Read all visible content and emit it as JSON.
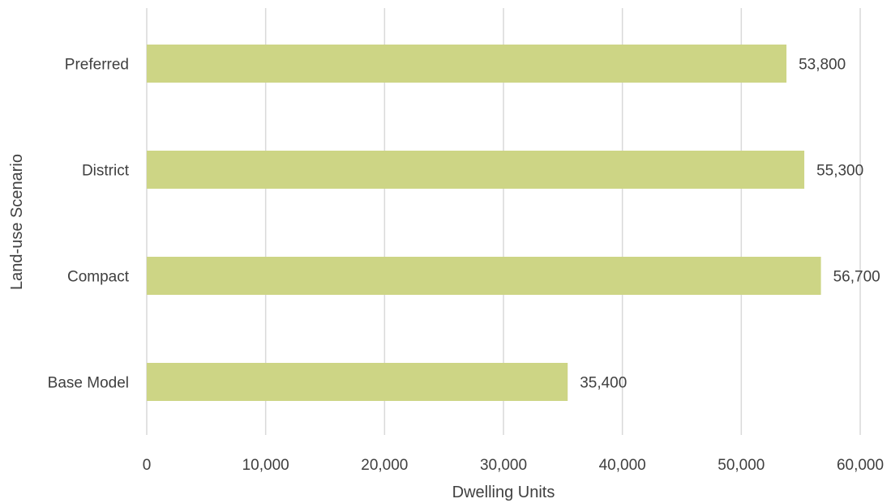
{
  "chart_data": {
    "type": "bar",
    "orientation": "horizontal",
    "categories": [
      "Base Model",
      "Compact",
      "District",
      "Preferred"
    ],
    "values": [
      35400,
      56700,
      55300,
      53800
    ],
    "data_labels": [
      "35,400",
      "56,700",
      "55,300",
      "53,800"
    ],
    "xlabel": "Dwelling Units",
    "ylabel": "Land-use Scenario",
    "xlim": [
      0,
      60000
    ],
    "x_ticks": [
      0,
      10000,
      20000,
      30000,
      40000,
      50000,
      60000
    ],
    "x_tick_labels": [
      "0",
      "10,000",
      "20,000",
      "30,000",
      "40,000",
      "50,000",
      "60,000"
    ],
    "grid": "vertical",
    "legend": "none",
    "bar_color": "#cdd585"
  }
}
